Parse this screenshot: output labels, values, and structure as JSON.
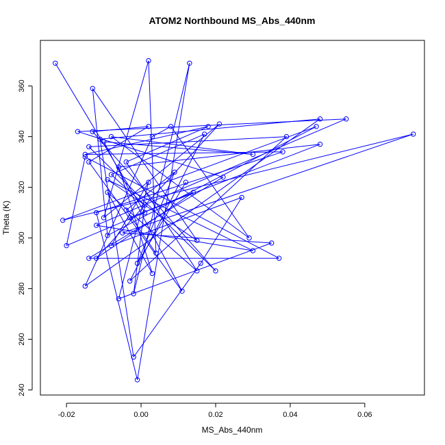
{
  "chart_data": {
    "type": "line",
    "title": "ATOM2 Northbound MS_Abs_440nm",
    "xlabel": "MS_Abs_440nm",
    "ylabel": "Theta (K)",
    "xlim": [
      -0.027,
      0.076
    ],
    "ylim": [
      238,
      378
    ],
    "x_ticks": [
      -0.02,
      0.0,
      0.02,
      0.04,
      0.06
    ],
    "x_tick_labels": [
      "-0.02",
      "0.00",
      "0.02",
      "0.04",
      "0.06"
    ],
    "y_ticks": [
      240,
      260,
      280,
      300,
      320,
      340,
      360
    ],
    "y_tick_labels": [
      "240",
      "260",
      "280",
      "300",
      "320",
      "340",
      "360"
    ],
    "grid": false,
    "series": [
      {
        "color": "#0000ff",
        "marker": "open-circle",
        "points": [
          {
            "x": -0.023,
            "y": 369
          },
          {
            "x": 0.001,
            "y": 310
          },
          {
            "x": -0.02,
            "y": 297
          },
          {
            "x": -0.015,
            "y": 332
          },
          {
            "x": 0.037,
            "y": 292
          },
          {
            "x": -0.014,
            "y": 292
          },
          {
            "x": 0.022,
            "y": 324
          },
          {
            "x": -0.017,
            "y": 342
          },
          {
            "x": 0.055,
            "y": 347
          },
          {
            "x": -0.012,
            "y": 305
          },
          {
            "x": 0.03,
            "y": 295
          },
          {
            "x": -0.009,
            "y": 323
          },
          {
            "x": 0.015,
            "y": 299
          },
          {
            "x": -0.013,
            "y": 359
          },
          {
            "x": -0.009,
            "y": 301
          },
          {
            "x": 0.047,
            "y": 344
          },
          {
            "x": -0.021,
            "y": 307
          },
          {
            "x": 0.073,
            "y": 341
          },
          {
            "x": -0.005,
            "y": 302
          },
          {
            "x": 0.035,
            "y": 298
          },
          {
            "x": -0.006,
            "y": 276
          },
          {
            "x": 0.002,
            "y": 322
          },
          {
            "x": -0.008,
            "y": 297
          },
          {
            "x": 0.027,
            "y": 316
          },
          {
            "x": 0.016,
            "y": 290
          },
          {
            "x": -0.002,
            "y": 253
          },
          {
            "x": -0.011,
            "y": 339
          },
          {
            "x": 0.048,
            "y": 347
          },
          {
            "x": -0.015,
            "y": 281
          },
          {
            "x": 0.003,
            "y": 340
          },
          {
            "x": 0.008,
            "y": 344
          },
          {
            "x": 0.029,
            "y": 300
          },
          {
            "x": -0.008,
            "y": 340
          },
          {
            "x": 0.03,
            "y": 333
          },
          {
            "x": -0.01,
            "y": 338
          },
          {
            "x": 0.011,
            "y": 279
          },
          {
            "x": -0.014,
            "y": 330
          },
          {
            "x": 0.002,
            "y": 344
          },
          {
            "x": -0.013,
            "y": 342
          },
          {
            "x": 0.02,
            "y": 287
          },
          {
            "x": -0.014,
            "y": 336
          },
          {
            "x": 0.039,
            "y": 340
          },
          {
            "x": -0.003,
            "y": 283
          },
          {
            "x": 0.017,
            "y": 341
          },
          {
            "x": -0.008,
            "y": 325
          },
          {
            "x": 0.001,
            "y": 313
          },
          {
            "x": -0.002,
            "y": 278
          },
          {
            "x": 0.013,
            "y": 369
          },
          {
            "x": -0.001,
            "y": 244
          },
          {
            "x": -0.012,
            "y": 310
          },
          {
            "x": 0.038,
            "y": 334
          },
          {
            "x": -0.015,
            "y": 333
          },
          {
            "x": 0.018,
            "y": 344
          },
          {
            "x": -0.004,
            "y": 330
          },
          {
            "x": 0.015,
            "y": 287
          },
          {
            "x": -0.009,
            "y": 318
          },
          {
            "x": 0.003,
            "y": 286
          },
          {
            "x": -0.006,
            "y": 328
          },
          {
            "x": 0.048,
            "y": 337
          },
          {
            "x": -0.003,
            "y": 308
          },
          {
            "x": 0.014,
            "y": 318
          },
          {
            "x": -0.012,
            "y": 292
          },
          {
            "x": 0.021,
            "y": 345
          },
          {
            "x": -0.01,
            "y": 308
          },
          {
            "x": 0.002,
            "y": 370
          },
          {
            "x": 0.004,
            "y": 294
          },
          {
            "x": -0.004,
            "y": 311
          },
          {
            "x": 0.009,
            "y": 326
          },
          {
            "x": -0.001,
            "y": 290
          },
          {
            "x": 0.012,
            "y": 322
          }
        ]
      }
    ]
  }
}
